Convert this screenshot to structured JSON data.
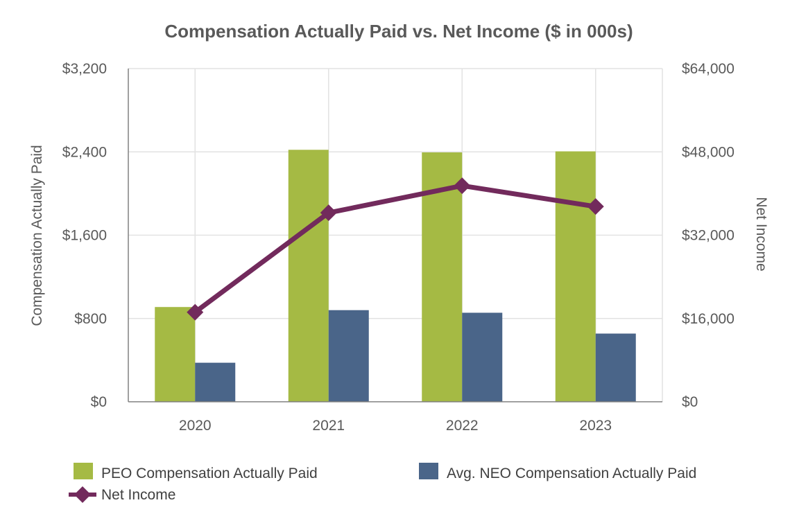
{
  "chart_data": {
    "type": "bar",
    "title": "Compensation Actually Paid vs. Net Income ($ in 000s)",
    "categories": [
      "2020",
      "2021",
      "2022",
      "2023"
    ],
    "ylabel": "Compensation Actually Paid",
    "y2label": "Net Income",
    "ylim": [
      0,
      3200
    ],
    "y2lim": [
      0,
      64000
    ],
    "yticks": [
      "$0",
      "$800",
      "$1,600",
      "$2,400",
      "$3,200"
    ],
    "y2ticks": [
      "$0",
      "$16,000",
      "$32,000",
      "$48,000",
      "$64,000"
    ],
    "grid": true,
    "legend_position": "bottom",
    "series": [
      {
        "name": "PEO Compensation Actually Paid",
        "type": "bar",
        "axis": "left",
        "color": "#a5ba44",
        "values": [
          910,
          2420,
          2395,
          2405
        ]
      },
      {
        "name": "Avg. NEO Compensation Actually Paid",
        "type": "bar",
        "axis": "left",
        "color": "#4a6589",
        "values": [
          375,
          880,
          855,
          655
        ]
      },
      {
        "name": "Net Income",
        "type": "line",
        "axis": "right",
        "marker": "diamond",
        "color": "#722a5c",
        "values": [
          17200,
          36300,
          41500,
          37500
        ]
      }
    ]
  }
}
